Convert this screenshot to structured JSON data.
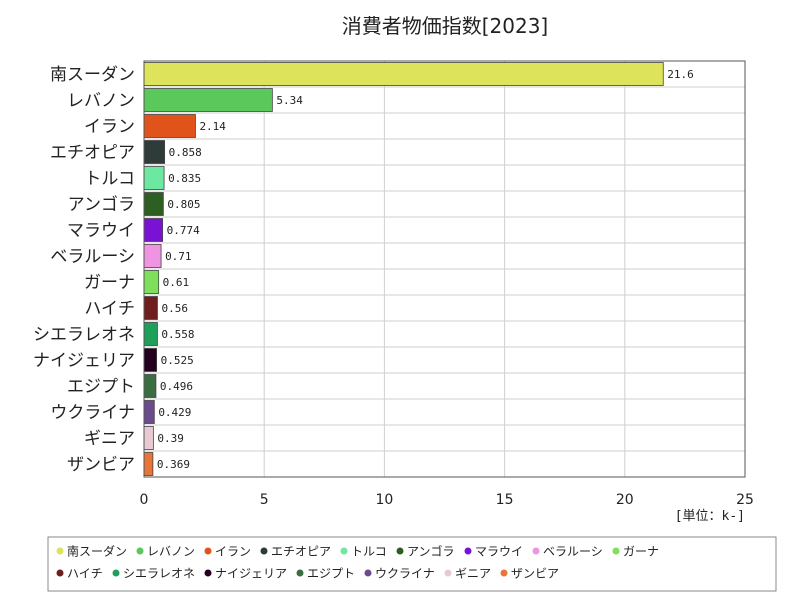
{
  "chart_data": {
    "type": "bar",
    "orientation": "horizontal",
    "title": "消費者物価指数[2023]",
    "unit_label": "[単位：k-]",
    "xlim": [
      0,
      25
    ],
    "x_ticks": [
      "0",
      "5",
      "10",
      "15",
      "20",
      "25"
    ],
    "grid": true,
    "legend_position": "bottom",
    "categories": [
      "南スーダン",
      "レバノン",
      "イラン",
      "エチオピア",
      "トルコ",
      "アンゴラ",
      "マラウイ",
      "ベラルーシ",
      "ガーナ",
      "ハイチ",
      "シエラレオネ",
      "ナイジェリア",
      "エジプト",
      "ウクライナ",
      "ギニア",
      "ザンビア"
    ],
    "values": [
      21.6,
      5.34,
      2.14,
      0.858,
      0.835,
      0.805,
      0.774,
      0.71,
      0.61,
      0.56,
      0.558,
      0.525,
      0.496,
      0.429,
      0.39,
      0.369
    ],
    "value_labels": [
      "21.6",
      "5.34",
      "2.14",
      "0.858",
      "0.835",
      "0.805",
      "0.774",
      "0.71",
      "0.61",
      "0.56",
      "0.558",
      "0.525",
      "0.496",
      "0.429",
      "0.39",
      "0.369"
    ],
    "colors": [
      "#dde35a",
      "#5ac85a",
      "#e0531a",
      "#2f3b38",
      "#6ce8a0",
      "#2d5e22",
      "#7a12d6",
      "#ef94e0",
      "#7ee05a",
      "#6e1e1e",
      "#1ea05a",
      "#24001e",
      "#3a6e42",
      "#6a4c8e",
      "#e8cad2",
      "#e8743a"
    ]
  }
}
